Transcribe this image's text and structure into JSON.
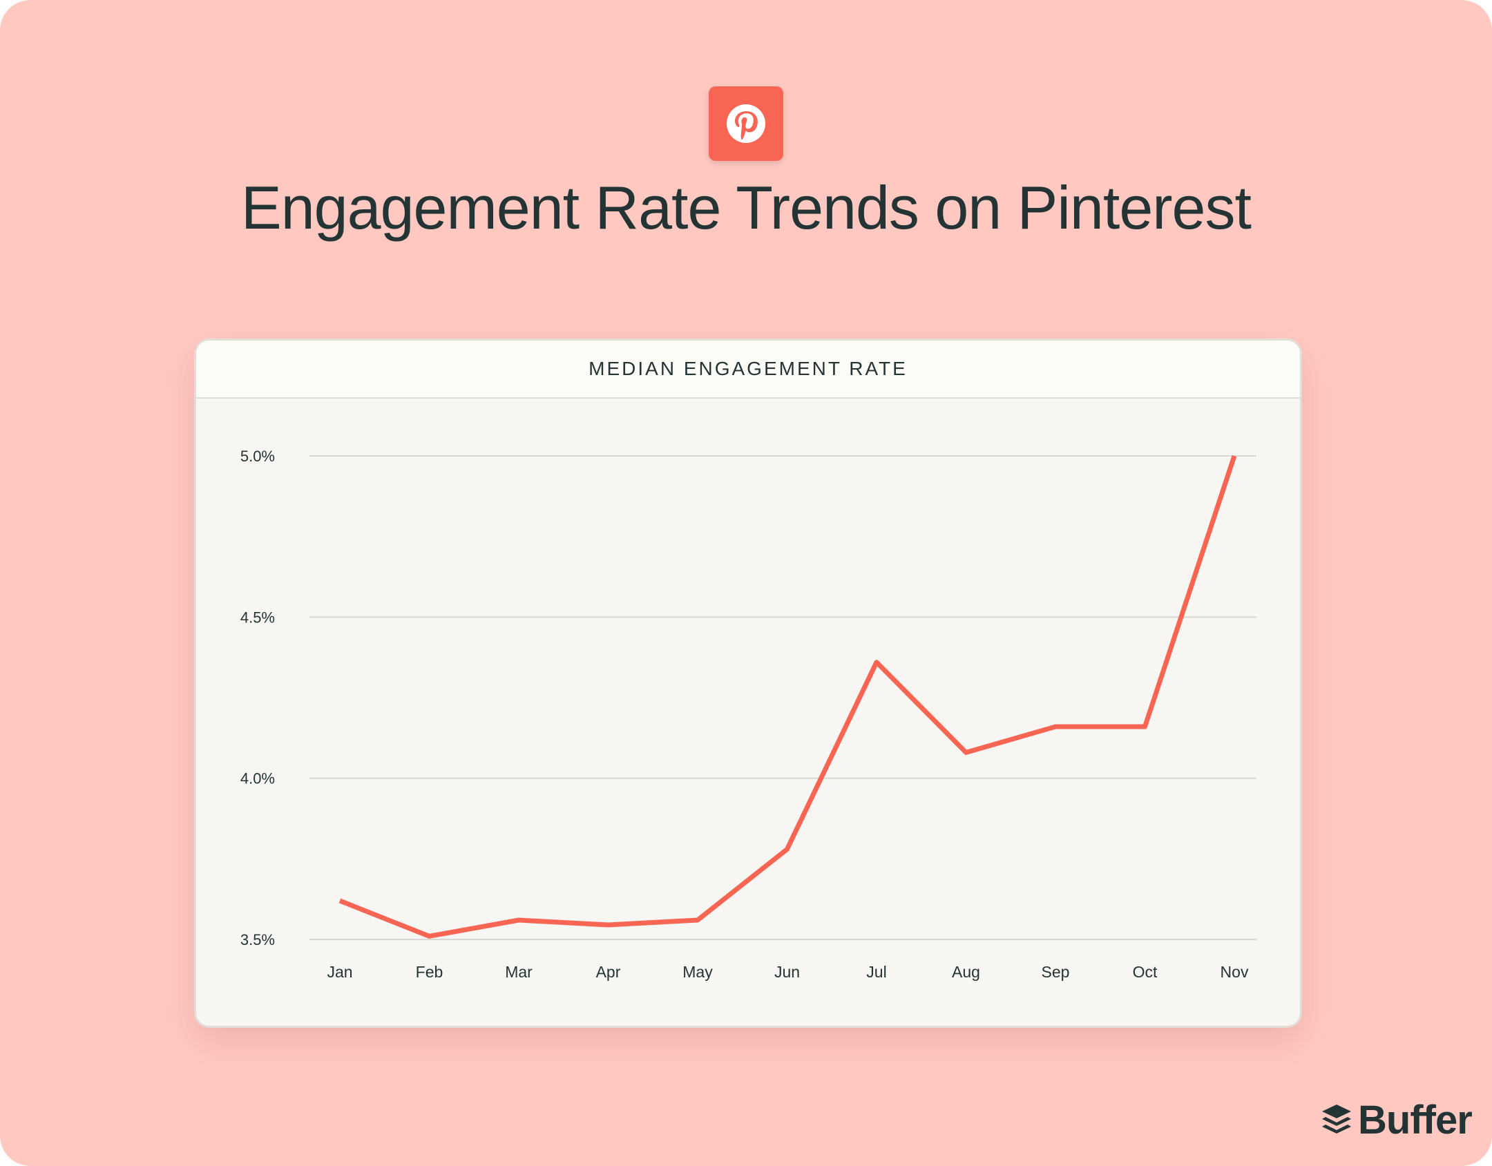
{
  "header": {
    "title": "Engagement Rate Trends on Pinterest",
    "icon": "pinterest-icon",
    "icon_color": "#f96553"
  },
  "brand": {
    "name": "Buffer",
    "icon": "buffer-stack-icon"
  },
  "chart_data": {
    "type": "line",
    "title": "MEDIAN ENGAGEMENT RATE",
    "categories": [
      "Jan",
      "Feb",
      "Mar",
      "Apr",
      "May",
      "Jun",
      "Jul",
      "Aug",
      "Sep",
      "Oct",
      "Nov"
    ],
    "series": [
      {
        "values": [
          3.62,
          3.51,
          3.56,
          3.545,
          3.56,
          3.78,
          4.36,
          4.08,
          4.16,
          4.16,
          5.0
        ],
        "color": "#f96553"
      }
    ],
    "ylim": [
      3.5,
      5.0
    ],
    "yticks": [
      3.5,
      4.0,
      4.5,
      5.0
    ],
    "ytick_labels": [
      "3.5%",
      "4.0%",
      "4.5%",
      "5.0%"
    ],
    "grid": true,
    "xlabel": "",
    "ylabel": ""
  }
}
